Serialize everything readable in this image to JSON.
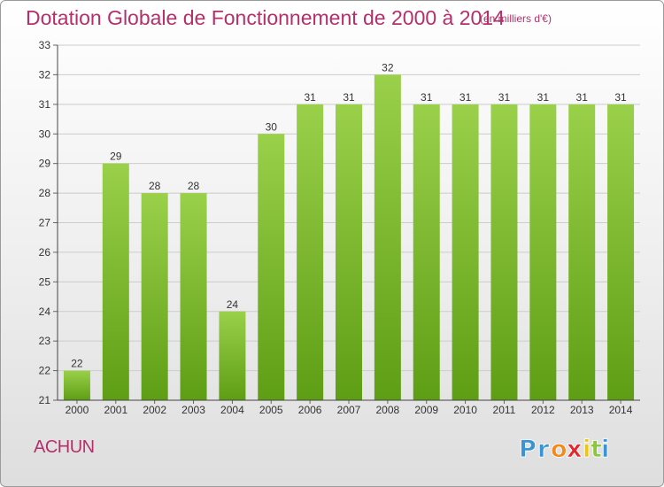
{
  "chart_data": {
    "type": "bar",
    "title": "Dotation Globale de Fonctionnement de 2000 à 2014",
    "subtitle": "(en milliers d'€)",
    "categories": [
      "2000",
      "2001",
      "2002",
      "2003",
      "2004",
      "2005",
      "2006",
      "2007",
      "2008",
      "2009",
      "2010",
      "2011",
      "2012",
      "2013",
      "2014"
    ],
    "values": [
      22,
      29,
      28,
      28,
      24,
      30,
      31,
      31,
      32,
      31,
      31,
      31,
      31,
      31,
      31
    ],
    "ylim": [
      21,
      33
    ],
    "yticks": [
      21,
      22,
      23,
      24,
      25,
      26,
      27,
      28,
      29,
      30,
      31,
      32,
      33
    ],
    "grid": true,
    "legend": "none",
    "bar_color_top": "#9ad04a",
    "bar_color_bottom": "#5e9e14",
    "grid_color": "#cccccc"
  },
  "commune": "ACHUN",
  "logo": {
    "letters": [
      "P",
      "r",
      "o",
      "x",
      "i",
      "t",
      "i"
    ],
    "colors": [
      "#3a93d2",
      "#3a93d2",
      "#f08a1c",
      "#e2262a",
      "#f5c400",
      "#8cc63f",
      "#3a93d2"
    ]
  }
}
